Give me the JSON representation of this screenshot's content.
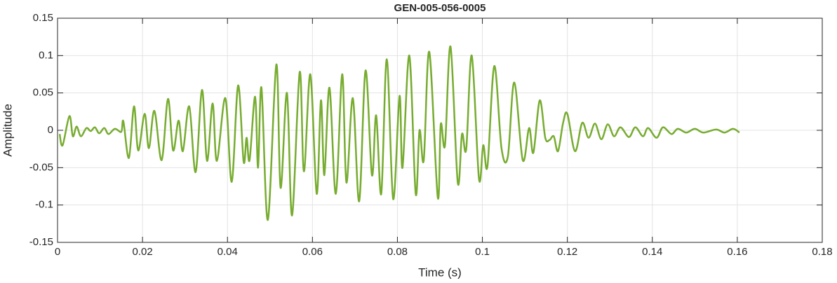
{
  "chart_data": {
    "type": "line",
    "title": "GEN-005-056-0005",
    "xlabel": "Time (s)",
    "ylabel": "Amplitude",
    "color": "#77ac30",
    "grid": true,
    "xlim": [
      0,
      0.18
    ],
    "xticks": [
      0,
      0.02,
      0.04,
      0.06,
      0.08,
      0.1,
      0.12,
      0.14,
      0.16,
      0.18
    ],
    "ylim": [
      -0.15,
      0.15
    ],
    "yticks": [
      -0.15,
      -0.1,
      -0.05,
      0,
      0.05,
      0.1,
      0.15
    ],
    "x": [
      0.0005,
      0.0012,
      0.0028,
      0.0036,
      0.0045,
      0.0055,
      0.0068,
      0.0078,
      0.0088,
      0.0098,
      0.011,
      0.012,
      0.0135,
      0.015,
      0.0155,
      0.0168,
      0.018,
      0.019,
      0.0205,
      0.0215,
      0.0228,
      0.0245,
      0.026,
      0.0272,
      0.0285,
      0.0295,
      0.031,
      0.0325,
      0.034,
      0.0352,
      0.0365,
      0.0375,
      0.0395,
      0.041,
      0.0425,
      0.0438,
      0.0445,
      0.0452,
      0.0465,
      0.0472,
      0.048,
      0.0495,
      0.0515,
      0.0525,
      0.054,
      0.0552,
      0.057,
      0.058,
      0.0595,
      0.061,
      0.062,
      0.0628,
      0.064,
      0.0655,
      0.067,
      0.068,
      0.0695,
      0.071,
      0.0725,
      0.074,
      0.075,
      0.0762,
      0.0775,
      0.079,
      0.0805,
      0.0812,
      0.0828,
      0.0843,
      0.0852,
      0.0862,
      0.0875,
      0.0895,
      0.0902,
      0.0912,
      0.0925,
      0.0942,
      0.0952,
      0.0962,
      0.0975,
      0.0992,
      0.1002,
      0.1012,
      0.1028,
      0.1045,
      0.106,
      0.1075,
      0.1095,
      0.111,
      0.112,
      0.1135,
      0.1148,
      0.1158,
      0.1168,
      0.1178,
      0.119,
      0.12,
      0.1218,
      0.1235,
      0.125,
      0.1265,
      0.128,
      0.1295,
      0.131,
      0.1325,
      0.1345,
      0.136,
      0.1378,
      0.139,
      0.141,
      0.1425,
      0.1445,
      0.146,
      0.148,
      0.15,
      0.152,
      0.155,
      0.157,
      0.159,
      0.1605
    ],
    "values": [
      -0.005,
      -0.02,
      0.019,
      -0.008,
      0.005,
      -0.008,
      0.003,
      -0.001,
      0.004,
      -0.004,
      0.003,
      -0.005,
      0.002,
      -0.002,
      0.012,
      -0.037,
      0.032,
      -0.027,
      0.022,
      -0.024,
      0.026,
      -0.04,
      0.042,
      -0.027,
      0.013,
      -0.028,
      0.032,
      -0.056,
      0.054,
      -0.041,
      0.036,
      -0.041,
      0.043,
      -0.069,
      0.06,
      -0.042,
      -0.01,
      -0.04,
      0.045,
      -0.05,
      0.057,
      -0.12,
      0.088,
      -0.077,
      0.05,
      -0.114,
      0.078,
      -0.055,
      0.075,
      -0.085,
      0.04,
      -0.06,
      0.057,
      -0.085,
      0.075,
      -0.07,
      0.043,
      -0.095,
      0.08,
      -0.06,
      0.02,
      -0.085,
      0.095,
      -0.092,
      0.046,
      -0.05,
      0.1,
      -0.085,
      0.0,
      -0.04,
      0.105,
      -0.09,
      0.008,
      -0.02,
      0.112,
      -0.07,
      -0.005,
      -0.025,
      0.1,
      -0.065,
      -0.02,
      -0.048,
      0.086,
      -0.024,
      -0.035,
      0.064,
      -0.04,
      0.003,
      -0.03,
      0.04,
      -0.01,
      -0.013,
      -0.008,
      -0.028,
      0.01,
      0.022,
      -0.028,
      0.01,
      -0.01,
      0.009,
      -0.012,
      0.008,
      -0.008,
      0.004,
      -0.009,
      0.004,
      -0.008,
      0.003,
      -0.01,
      0.004,
      -0.005,
      0.002,
      -0.003,
      0.002,
      -0.003,
      0.001,
      -0.003,
      0.002,
      -0.003
    ]
  }
}
